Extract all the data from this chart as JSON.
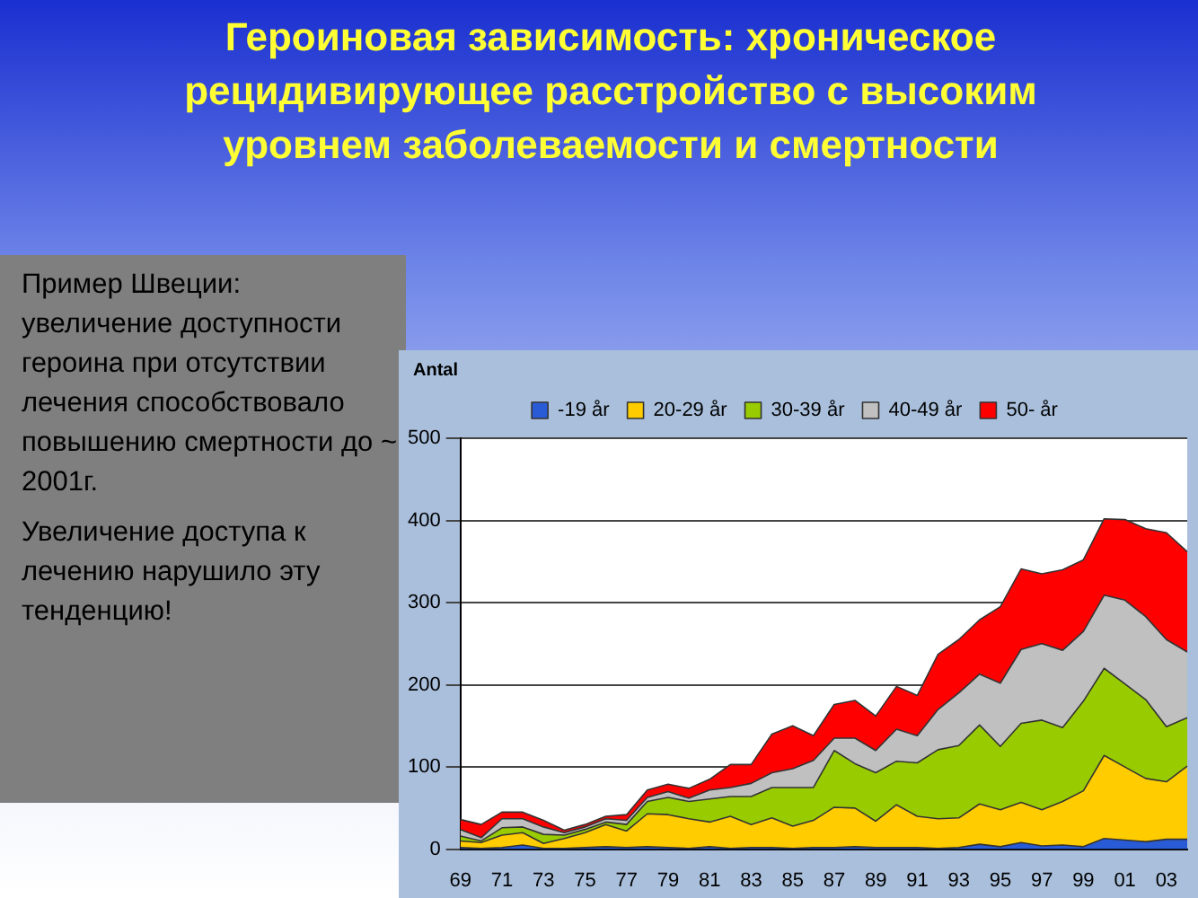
{
  "chart_data": {
    "type": "area",
    "title": "Героиновая зависимость: хроническое рецидивирующее расстройство с высоким уровнем заболеваемости и смертности",
    "ylabel": "Antal",
    "annotations": [
      "Пример Швеции: увеличение доступности  героина при отсутствии лечения способствовало повышению смертности до ~ 2001г.",
      "Увеличение доступа  к лечению нарушило эту тенденцию!"
    ],
    "categories": [
      "69",
      null,
      "71",
      null,
      "73",
      null,
      "75",
      null,
      "77",
      null,
      "79",
      null,
      "81",
      null,
      "83",
      null,
      "85",
      null,
      "87",
      null,
      "89",
      null,
      "91",
      null,
      "93",
      null,
      "95",
      null,
      "97",
      null,
      "99",
      null,
      "01",
      null,
      "03",
      null
    ],
    "stacked": true,
    "ylim": [
      0,
      500
    ],
    "yticks": [
      0,
      100,
      200,
      300,
      400,
      500
    ],
    "grid": "y",
    "legend": "top",
    "series": [
      {
        "name": "-19 år",
        "color": "#2a5bd7",
        "values": [
          2,
          1,
          2,
          5,
          1,
          1,
          2,
          3,
          2,
          3,
          2,
          1,
          3,
          1,
          2,
          2,
          1,
          2,
          2,
          3,
          2,
          2,
          2,
          1,
          2,
          6,
          3,
          8,
          4,
          5,
          3,
          13,
          11,
          9,
          12,
          12
        ]
      },
      {
        "name": "20-29 år",
        "color": "#ffcc00",
        "values": [
          8,
          7,
          15,
          15,
          6,
          12,
          18,
          27,
          20,
          40,
          40,
          36,
          30,
          39,
          28,
          36,
          27,
          33,
          49,
          47,
          32,
          52,
          38,
          36,
          36,
          49,
          45,
          49,
          44,
          53,
          68,
          101,
          89,
          77,
          70,
          89
        ]
      },
      {
        "name": "30-39 år",
        "color": "#99cc00",
        "values": [
          6,
          2,
          9,
          7,
          11,
          4,
          4,
          3,
          8,
          15,
          21,
          21,
          28,
          24,
          34,
          37,
          47,
          40,
          69,
          54,
          59,
          53,
          65,
          84,
          88,
          96,
          77,
          96,
          109,
          90,
          109,
          106,
          101,
          96,
          67,
          59
        ]
      },
      {
        "name": "40-49 år",
        "color": "#c0c0c0",
        "values": [
          8,
          4,
          11,
          10,
          9,
          3,
          3,
          4,
          5,
          5,
          7,
          4,
          11,
          11,
          16,
          18,
          23,
          33,
          15,
          31,
          27,
          39,
          33,
          49,
          64,
          62,
          77,
          90,
          93,
          94,
          85,
          89,
          102,
          101,
          106,
          80
        ]
      },
      {
        "name": "50- år",
        "color": "#ff0000",
        "values": [
          12,
          16,
          8,
          8,
          8,
          3,
          3,
          3,
          7,
          9,
          9,
          12,
          13,
          28,
          23,
          47,
          52,
          30,
          41,
          46,
          42,
          52,
          49,
          67,
          65,
          66,
          93,
          98,
          85,
          98,
          87,
          93,
          98,
          107,
          130,
          122
        ]
      }
    ]
  }
}
